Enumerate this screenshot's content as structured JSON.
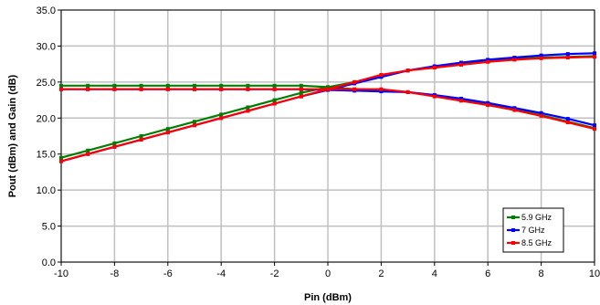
{
  "chart_data": {
    "type": "line",
    "title": "",
    "xlabel": "Pin (dBm)",
    "ylabel": "Pout (dBm) and Gain (dB)",
    "xlim": [
      -10,
      10
    ],
    "ylim": [
      0,
      35
    ],
    "xticks": [
      -10,
      -8,
      -6,
      -4,
      -2,
      0,
      2,
      4,
      6,
      8,
      10
    ],
    "yticks": [
      "0.0",
      "5.0",
      "10.0",
      "15.0",
      "20.0",
      "25.0",
      "30.0",
      "35.0"
    ],
    "grid": true,
    "legend_position": "bottom-right",
    "x": [
      -10,
      -9,
      -8,
      -7,
      -6,
      -5,
      -4,
      -3,
      -2,
      -1,
      0,
      1,
      2,
      3,
      4,
      5,
      6,
      7,
      8,
      9,
      10
    ],
    "series": [
      {
        "name": "5.9 GHz",
        "color": "#008000",
        "marker": "square",
        "pout": [
          14.5,
          15.5,
          16.5,
          17.5,
          18.5,
          19.5,
          20.5,
          21.5,
          22.5,
          23.5,
          24.3,
          25.0,
          25.9,
          26.6,
          27.1,
          27.5,
          27.9,
          28.2,
          28.4,
          28.5,
          28.6
        ],
        "gain": [
          24.5,
          24.5,
          24.5,
          24.5,
          24.5,
          24.5,
          24.5,
          24.5,
          24.5,
          24.5,
          24.3,
          24.0,
          23.9,
          23.6,
          23.1,
          22.5,
          21.9,
          21.2,
          20.4,
          19.5,
          18.6
        ]
      },
      {
        "name": "7 GHz",
        "color": "#0000ff",
        "marker": "square",
        "pout": [
          14.0,
          15.0,
          16.0,
          17.0,
          18.0,
          19.0,
          20.0,
          21.0,
          22.0,
          23.0,
          23.9,
          24.8,
          25.7,
          26.6,
          27.2,
          27.7,
          28.1,
          28.4,
          28.7,
          28.9,
          29.0
        ],
        "gain": [
          24.0,
          24.0,
          24.0,
          24.0,
          24.0,
          24.0,
          24.0,
          24.0,
          24.0,
          24.0,
          23.9,
          23.8,
          23.7,
          23.6,
          23.2,
          22.7,
          22.1,
          21.4,
          20.7,
          19.9,
          19.0
        ]
      },
      {
        "name": "8.5 GHz",
        "color": "#ff0000",
        "marker": "square",
        "pout": [
          14.0,
          15.0,
          16.0,
          17.0,
          18.0,
          19.0,
          20.0,
          21.0,
          22.0,
          23.0,
          24.0,
          25.0,
          26.0,
          26.6,
          27.0,
          27.4,
          27.8,
          28.1,
          28.3,
          28.4,
          28.5
        ],
        "gain": [
          24.0,
          24.0,
          24.0,
          24.0,
          24.0,
          24.0,
          24.0,
          24.0,
          24.0,
          24.0,
          24.0,
          24.0,
          24.0,
          23.6,
          23.0,
          22.4,
          21.8,
          21.1,
          20.3,
          19.4,
          18.5
        ]
      }
    ]
  }
}
